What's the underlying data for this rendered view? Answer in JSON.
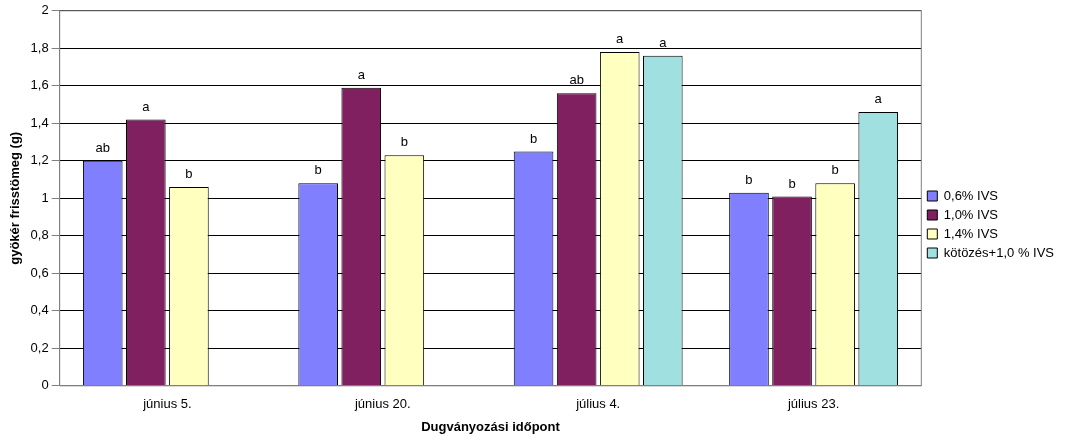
{
  "chart_data": {
    "type": "bar",
    "xlabel": "Dugványozási időpont",
    "ylabel": "gyökér frisstömeg (g)",
    "categories": [
      "június 5.",
      "június 20.",
      "július 4.",
      "július 23."
    ],
    "series": [
      {
        "name": "0,6% IVS",
        "color": "#8080ff",
        "values": [
          1.2,
          1.08,
          1.25,
          1.03
        ],
        "value_labels": [
          "ab",
          "b",
          "b",
          "b"
        ]
      },
      {
        "name": "1,0% IVS",
        "color": "#802060",
        "values": [
          1.42,
          1.59,
          1.56,
          1.01
        ],
        "value_labels": [
          "a",
          "a",
          "ab",
          "b"
        ]
      },
      {
        "name": "1,4% IVS",
        "color": "#ffffc0",
        "values": [
          1.06,
          1.23,
          1.78,
          1.08
        ],
        "value_labels": [
          "b",
          "b",
          "a",
          "b"
        ]
      },
      {
        "name": "kötözés+1,0 % IVS",
        "color": "#a0e0e0",
        "values": [
          null,
          null,
          1.76,
          1.46
        ],
        "value_labels": [
          null,
          null,
          "a",
          "a"
        ]
      }
    ],
    "ylim": [
      0,
      2
    ],
    "yticks": [
      0,
      {
        "value": 0.2,
        "label": "0,2"
      },
      {
        "value": 0.4,
        "label": "0,4"
      },
      {
        "value": 0.6,
        "label": "0,6"
      },
      {
        "value": 0.8,
        "label": "0,8"
      },
      1,
      {
        "value": 1.2,
        "label": "1,2"
      },
      {
        "value": 1.4,
        "label": "1,4"
      },
      {
        "value": 1.6,
        "label": "1,6"
      },
      {
        "value": 1.8,
        "label": "1,8"
      },
      2
    ],
    "grid": "y",
    "legend": "right"
  }
}
